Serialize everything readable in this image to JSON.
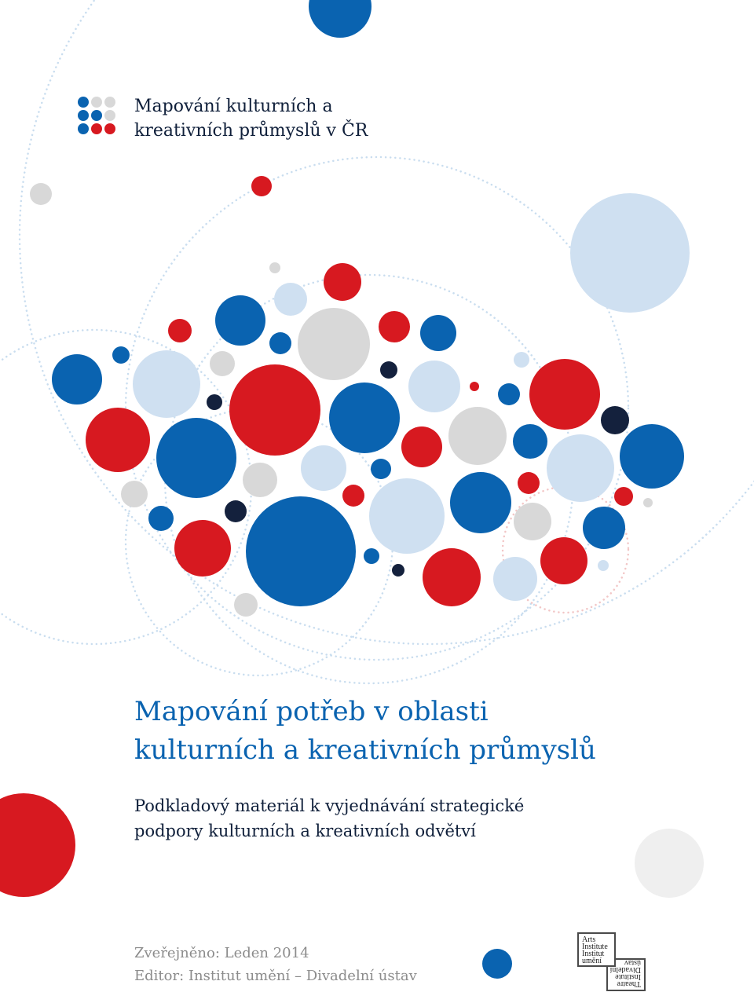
{
  "palette": {
    "blue": "#0a63b0",
    "red": "#d71920",
    "light_blue": "#cfe0f1",
    "grey": "#d8d8d8",
    "navy": "#14213d",
    "pale_grey": "#efefef"
  },
  "header": {
    "logo_line_1": "Mapování kulturních a",
    "logo_line_2": "kreativních průmyslů v ČR"
  },
  "title": {
    "line_1": "Mapování potřeb v oblasti",
    "line_2": "kulturních a kreativních průmyslů"
  },
  "subtitle": {
    "line_1": "Podkladový materiál k vyjednávání strategické",
    "line_2": "podpory kulturních a kreativních odvětví"
  },
  "footer": {
    "published": "Zveřejněno: Leden 2014",
    "editor": "Editor: Institut umění – Divadelní ústav"
  },
  "publisher_logo": {
    "top_box": [
      "Arts",
      "Institute",
      "Institut",
      "umění"
    ],
    "bottom_box": [
      "Theatre",
      "Institute",
      "Divadelní",
      "ústav"
    ]
  }
}
